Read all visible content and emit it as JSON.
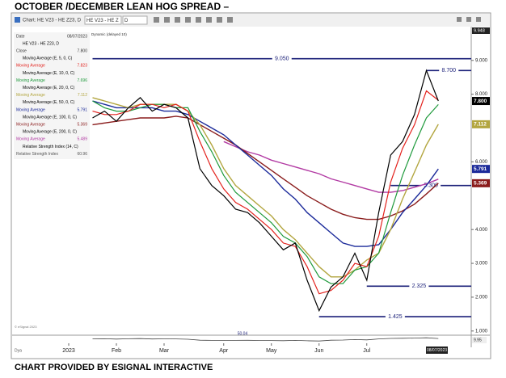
{
  "page_title": "OCTOBER /DECEMBER LEAN HOG SPREAD –",
  "footer": "CHART PROVIDED BY ESIGNAL INTERACTIVE",
  "toolbar": {
    "window_title": "Chart: HE V23 - HE Z23, D",
    "symbol": "HE V23 - HE Z",
    "interval": "D",
    "feed": "Dynamic (delayed 10)"
  },
  "chart_data": {
    "type": "line",
    "categories": [
      "2023",
      null,
      null,
      null,
      "Feb",
      null,
      null,
      null,
      "Mar",
      null,
      null,
      null,
      null,
      "Apr",
      null,
      null,
      null,
      "May",
      null,
      null,
      null,
      "Jun",
      null,
      null,
      null,
      "Jul",
      null,
      null,
      null,
      null,
      null,
      null
    ],
    "ylim": [
      0.9,
      9.95
    ],
    "yticks": [
      {
        "value": 1,
        "label": "1.000"
      },
      {
        "value": 2,
        "label": "2.000"
      },
      {
        "value": 3,
        "label": "3.000"
      },
      {
        "value": 4,
        "label": "4.000"
      },
      {
        "value": 6,
        "label": "6.000"
      },
      {
        "value": 8,
        "label": "8.000"
      },
      {
        "value": 9,
        "label": "9.000"
      }
    ],
    "top_label": "9.948",
    "date_label": "08/07/2023",
    "date_header": "Date",
    "date_value": "08/07/2023",
    "symbol_line": "HE V23 - HE Z23, D",
    "series": [
      {
        "name": "Close",
        "readout": "7.800",
        "color": "#000000",
        "width": 1.2,
        "values": [
          null,
          null,
          7.3,
          7.5,
          7.2,
          7.6,
          7.9,
          7.5,
          7.7,
          7.6,
          7.3,
          5.8,
          5.3,
          5.0,
          4.6,
          4.5,
          4.2,
          3.8,
          3.4,
          3.6,
          2.5,
          1.6,
          2.3,
          2.6,
          3.3,
          2.5,
          4.5,
          6.2,
          6.6,
          7.4,
          8.7,
          7.8
        ]
      },
      {
        "study": "Moving Average (E, 5, 0, C)",
        "name": "Moving Average",
        "readout": "7.823",
        "color": "#e3211c",
        "width": 1.2,
        "values": [
          null,
          null,
          7.5,
          7.4,
          7.4,
          7.5,
          7.7,
          7.7,
          7.6,
          7.7,
          7.5,
          6.6,
          5.8,
          5.2,
          4.8,
          4.6,
          4.3,
          4.0,
          3.6,
          3.5,
          2.9,
          2.1,
          2.2,
          2.5,
          3.0,
          2.9,
          3.8,
          5.4,
          6.4,
          7.1,
          8.1,
          7.823
        ]
      },
      {
        "study": "Moving Average (E, 10, 0, C)",
        "name": "Moving Average",
        "readout": "7.696",
        "color": "#1f9a3c",
        "width": 1.2,
        "values": [
          null,
          null,
          7.8,
          7.6,
          7.5,
          7.5,
          7.6,
          7.7,
          7.7,
          7.6,
          7.6,
          6.9,
          6.3,
          5.6,
          5.1,
          4.8,
          4.5,
          4.2,
          3.8,
          3.6,
          3.2,
          2.6,
          2.4,
          2.4,
          2.8,
          2.9,
          3.3,
          4.5,
          5.6,
          6.5,
          7.3,
          7.696
        ]
      },
      {
        "study": "Moving Average (E, 20, 0, C)",
        "name": "Moving Average",
        "readout": "7.112",
        "color": "#b3a640",
        "width": 1.4,
        "values": [
          null,
          null,
          7.9,
          7.8,
          7.7,
          7.6,
          7.7,
          7.7,
          7.7,
          7.7,
          7.5,
          7.1,
          6.5,
          5.8,
          5.3,
          5.0,
          4.7,
          4.4,
          4.0,
          3.7,
          3.3,
          2.9,
          2.6,
          2.6,
          2.8,
          3.1,
          3.3,
          4.0,
          4.9,
          5.7,
          6.5,
          7.112
        ]
      },
      {
        "study": "Moving Average (E, 50, 0, C)",
        "name": "Moving Average",
        "readout": "5.791",
        "color": "#1b2a9a",
        "width": 1.4,
        "values": [
          null,
          null,
          7.8,
          7.7,
          7.6,
          7.6,
          7.6,
          7.6,
          7.5,
          7.5,
          7.4,
          7.2,
          7.0,
          6.8,
          6.5,
          6.2,
          5.9,
          5.6,
          5.2,
          4.9,
          4.5,
          4.2,
          3.9,
          3.6,
          3.5,
          3.5,
          3.55,
          4.0,
          4.5,
          4.9,
          5.3,
          5.791
        ]
      },
      {
        "study": "Moving Average (E, 100, 0, C)",
        "name": "Moving Average",
        "readout": "5.369",
        "color": "#8a1c1c",
        "width": 1.4,
        "values": [
          null,
          null,
          7.1,
          7.15,
          7.2,
          7.25,
          7.3,
          7.3,
          7.3,
          7.35,
          7.3,
          7.1,
          6.9,
          6.7,
          6.5,
          6.25,
          6.0,
          5.75,
          5.5,
          5.25,
          5.0,
          4.8,
          4.6,
          4.45,
          4.35,
          4.3,
          4.3,
          4.4,
          4.55,
          4.75,
          5.05,
          5.369
        ]
      },
      {
        "study": "Moving Average (E, 200, 0, C)",
        "name": "Moving Average",
        "readout": "5.489",
        "color": "#b23aa3",
        "width": 1.4,
        "values": [
          null,
          null,
          null,
          null,
          null,
          null,
          null,
          null,
          null,
          null,
          null,
          null,
          null,
          6.6,
          6.45,
          6.3,
          6.2,
          6.05,
          5.95,
          5.85,
          5.75,
          5.65,
          5.5,
          5.4,
          5.3,
          5.2,
          5.1,
          5.1,
          5.15,
          5.25,
          5.35,
          5.489
        ]
      }
    ],
    "levels": [
      {
        "value": 9.05,
        "label": "9.050",
        "from": 2
      },
      {
        "value": 8.7,
        "label": "8.700",
        "from": 30
      },
      {
        "value": 5.3,
        "label": "5.300",
        "from": 27
      },
      {
        "value": 2.325,
        "label": "2.325",
        "from": 25
      },
      {
        "value": 1.425,
        "label": "1.425",
        "from": 21
      }
    ],
    "level_color": "#1a1f78",
    "price_tags": [
      {
        "value": 7.8,
        "label": "7.800",
        "color": "#000000"
      },
      {
        "value": 7.112,
        "label": "7.112",
        "color": "#b3a640"
      },
      {
        "value": 5.791,
        "label": "5.791",
        "color": "#1b2a9a"
      },
      {
        "value": 5.369,
        "label": "5.369",
        "color": "#8a1c1c"
      }
    ],
    "rsi": {
      "study": "Relative Strength Index (14, C)",
      "name": "Relative Strength Index",
      "readout": "60.96",
      "color": "#444444",
      "ylim": [
        0,
        100
      ],
      "center_label": "50.04",
      "right_label": "9.95",
      "values": [
        null,
        null,
        55,
        58,
        52,
        57,
        60,
        54,
        56,
        55,
        50,
        35,
        32,
        30,
        33,
        34,
        31,
        30,
        28,
        33,
        26,
        22,
        35,
        38,
        45,
        40,
        55,
        63,
        65,
        68,
        72,
        61
      ]
    }
  }
}
